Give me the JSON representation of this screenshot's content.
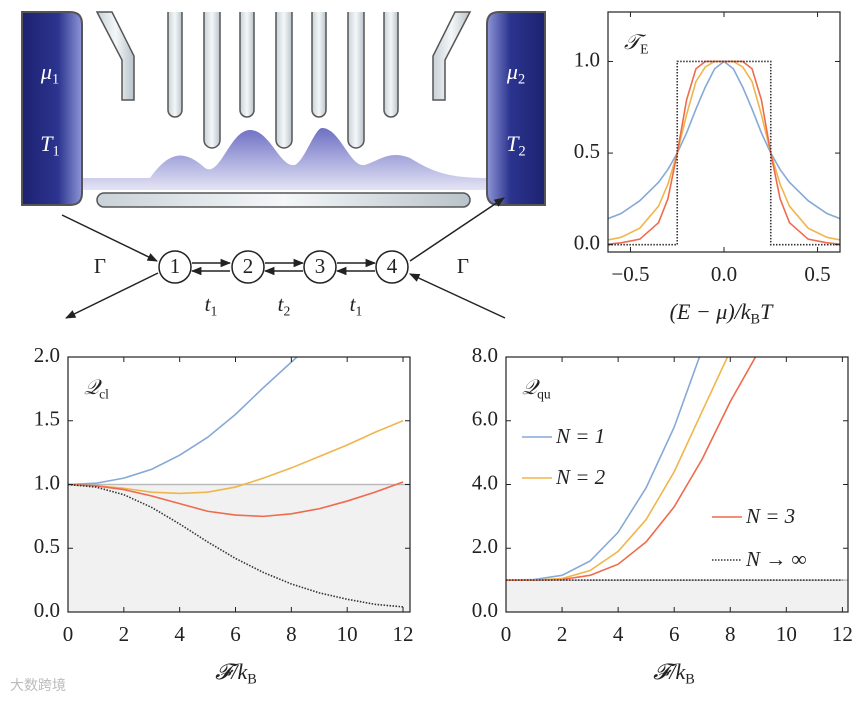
{
  "chart_data": [
    {
      "type": "line",
      "annotation": [
        {
          "text": "𝒯"
        },
        {
          "text": "E",
          "sub": true
        }
      ],
      "xlabel": [
        {
          "text": "(E − μ)/k"
        },
        {
          "text": "B",
          "sub": true
        },
        {
          "text": "T"
        }
      ],
      "xlim": [
        -0.62,
        0.62
      ],
      "ylim": [
        -0.04,
        1.27
      ],
      "xticks": [
        {
          "value": -0.5,
          "label": "−0.5"
        },
        {
          "value": 0,
          "label": "0.0"
        },
        0.5
      ],
      "yticks": [
        {
          "value": 0,
          "label": "0.0"
        },
        0.5,
        {
          "value": 1,
          "label": "1.0"
        }
      ],
      "series": [
        {
          "color": "#86a9d6",
          "style": "solid",
          "x": [
            -0.65,
            -0.55,
            -0.45,
            -0.35,
            -0.3,
            -0.25,
            -0.2,
            -0.15,
            -0.1,
            -0.05,
            0,
            0.05,
            0.1,
            0.15,
            0.2,
            0.25,
            0.3,
            0.35,
            0.45,
            0.55,
            0.65
          ],
          "values": [
            0.13,
            0.17,
            0.24,
            0.34,
            0.41,
            0.5,
            0.61,
            0.74,
            0.86,
            0.96,
            1,
            0.96,
            0.86,
            0.74,
            0.61,
            0.5,
            0.41,
            0.34,
            0.24,
            0.17,
            0.13
          ]
        },
        {
          "color": "#f0b54c",
          "style": "solid",
          "x": [
            -0.65,
            -0.55,
            -0.45,
            -0.35,
            -0.3,
            -0.25,
            -0.2,
            -0.15,
            -0.1,
            -0.05,
            0,
            0.05,
            0.1,
            0.15,
            0.2,
            0.25,
            0.3,
            0.35,
            0.45,
            0.55,
            0.65
          ],
          "values": [
            0.02,
            0.04,
            0.09,
            0.21,
            0.33,
            0.5,
            0.71,
            0.89,
            0.97,
            1,
            1,
            1,
            0.97,
            0.89,
            0.71,
            0.5,
            0.33,
            0.21,
            0.09,
            0.04,
            0.02
          ]
        },
        {
          "color": "#ee6b4d",
          "style": "solid",
          "x": [
            -0.65,
            -0.55,
            -0.45,
            -0.35,
            -0.3,
            -0.25,
            -0.2,
            -0.15,
            -0.1,
            -0.05,
            0,
            0.05,
            0.1,
            0.15,
            0.2,
            0.25,
            0.3,
            0.35,
            0.45,
            0.55,
            0.65
          ],
          "values": [
            0,
            0.01,
            0.03,
            0.12,
            0.25,
            0.5,
            0.79,
            0.96,
            1,
            1,
            1,
            1,
            1,
            0.96,
            0.79,
            0.5,
            0.25,
            0.12,
            0.03,
            0.01,
            0
          ]
        },
        {
          "color": "#333333",
          "style": "dotted",
          "x": [
            -0.65,
            -0.25,
            -0.25,
            0.25,
            0.25,
            0.65
          ],
          "values": [
            0,
            0,
            1,
            1,
            0,
            0
          ]
        }
      ]
    },
    {
      "type": "line",
      "annotation": [
        {
          "text": "𝒬"
        },
        {
          "text": "cl",
          "sub": true
        }
      ],
      "xlabel": [
        {
          "text": "𝓕/k"
        },
        {
          "text": "B",
          "sub": true
        }
      ],
      "xlim": [
        0,
        12.25
      ],
      "ylim": [
        0,
        2
      ],
      "xticks": [
        0,
        2,
        4,
        6,
        8,
        10,
        12
      ],
      "yticks": [
        {
          "value": 0,
          "label": "0.0"
        },
        0.5,
        {
          "value": 1,
          "label": "1.0"
        },
        1.5,
        {
          "value": 2,
          "label": "2.0"
        }
      ],
      "reference": 1,
      "shade_below_reference": true,
      "series": [
        {
          "color": "#86a9d6",
          "style": "solid",
          "x": [
            0,
            1,
            2,
            3,
            4,
            5,
            6,
            7,
            8,
            8.2
          ],
          "values": [
            1,
            1.01,
            1.05,
            1.12,
            1.23,
            1.37,
            1.55,
            1.76,
            1.96,
            2
          ]
        },
        {
          "color": "#f0b54c",
          "style": "solid",
          "x": [
            0,
            1,
            2,
            3,
            4,
            5,
            6,
            7,
            8,
            9,
            10,
            11,
            12
          ],
          "values": [
            1,
            0.99,
            0.97,
            0.94,
            0.93,
            0.94,
            0.98,
            1.05,
            1.13,
            1.22,
            1.31,
            1.41,
            1.5
          ]
        },
        {
          "color": "#ee6b4d",
          "style": "solid",
          "x": [
            0,
            1,
            2,
            3,
            4,
            5,
            6,
            7,
            8,
            9,
            10,
            11,
            12
          ],
          "values": [
            1,
            0.99,
            0.96,
            0.91,
            0.85,
            0.79,
            0.76,
            0.75,
            0.77,
            0.81,
            0.87,
            0.94,
            1.02
          ]
        },
        {
          "color": "#333333",
          "style": "dotted",
          "x": [
            0,
            1,
            2,
            3,
            4,
            5,
            6,
            7,
            8,
            9,
            10,
            11,
            12
          ],
          "values": [
            1,
            0.98,
            0.92,
            0.82,
            0.69,
            0.55,
            0.42,
            0.31,
            0.22,
            0.15,
            0.1,
            0.06,
            0.04
          ]
        }
      ]
    },
    {
      "type": "line",
      "annotation": [
        {
          "text": "𝒬"
        },
        {
          "text": "qu",
          "sub": true
        }
      ],
      "xlabel": [
        {
          "text": "𝓕/k"
        },
        {
          "text": "B",
          "sub": true
        }
      ],
      "xlim": [
        0,
        12.2
      ],
      "ylim": [
        0,
        8
      ],
      "xticks": [
        0,
        2,
        4,
        6,
        8,
        10,
        12
      ],
      "yticks": [
        {
          "value": 0,
          "label": "0.0"
        },
        {
          "value": 2,
          "label": "2.0"
        },
        {
          "value": 4,
          "label": "4.0"
        },
        {
          "value": 6,
          "label": "6.0"
        },
        {
          "value": 8,
          "label": "8.0"
        }
      ],
      "reference": 1,
      "shade_below_reference": true,
      "legend": true,
      "series": [
        {
          "name": "N = 1",
          "color": "#86a9d6",
          "style": "solid",
          "x": [
            0,
            1,
            2,
            3,
            4,
            5,
            6,
            6.9
          ],
          "values": [
            1,
            1.02,
            1.15,
            1.6,
            2.5,
            3.9,
            5.8,
            8
          ]
        },
        {
          "name": "N = 2",
          "color": "#f0b54c",
          "style": "solid",
          "x": [
            0,
            1,
            2,
            3,
            4,
            5,
            6,
            7,
            7.9
          ],
          "values": [
            1,
            1,
            1.05,
            1.3,
            1.9,
            2.9,
            4.4,
            6.3,
            8
          ]
        },
        {
          "name": "N = 3",
          "color": "#ee6b4d",
          "style": "solid",
          "x": [
            0,
            1,
            2,
            3,
            4,
            5,
            6,
            7,
            8,
            8.9
          ],
          "values": [
            1,
            1,
            1.02,
            1.15,
            1.5,
            2.2,
            3.3,
            4.8,
            6.6,
            8
          ]
        },
        {
          "name": "N → ∞",
          "color": "#333333",
          "style": "dotted",
          "x": [
            0,
            12
          ],
          "values": [
            1,
            1
          ]
        }
      ]
    }
  ],
  "diagram": {
    "reservoirs": [
      {
        "potential": [
          {
            "text": "μ"
          },
          {
            "text": "1",
            "sub": true
          }
        ],
        "temperature": [
          {
            "text": "T"
          },
          {
            "text": "1",
            "sub": true
          }
        ]
      },
      {
        "potential": [
          {
            "text": "μ"
          },
          {
            "text": "2",
            "sub": true
          }
        ],
        "temperature": [
          {
            "text": "T"
          },
          {
            "text": "2",
            "sub": true
          }
        ]
      }
    ],
    "nodes": [
      "1",
      "2",
      "3",
      "4"
    ],
    "couplings": [
      [
        {
          "text": "t"
        },
        {
          "text": "1",
          "sub": true
        }
      ],
      [
        {
          "text": "t"
        },
        {
          "text": "2",
          "sub": true
        }
      ],
      [
        {
          "text": "t"
        },
        {
          "text": "1",
          "sub": true
        }
      ]
    ],
    "rates": [
      "Γ",
      "Γ"
    ]
  },
  "watermark": "大数跨境"
}
